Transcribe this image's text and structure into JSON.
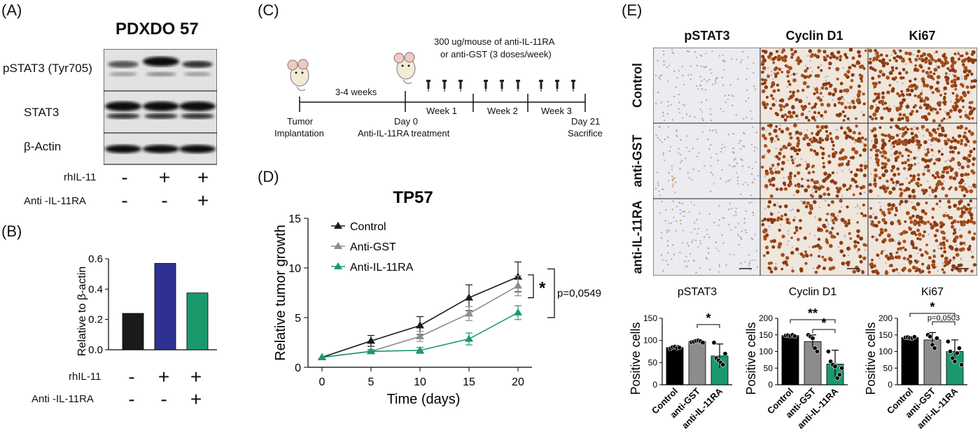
{
  "panels": {
    "a": "(A)",
    "b": "(B)",
    "c": "(C)",
    "d": "(D)",
    "e": "(E)"
  },
  "panel_a": {
    "title": "PDXDO 57",
    "rows": [
      "pSTAT3 (Tyr705)",
      "STAT3",
      "β-Actin"
    ],
    "treat_labels": [
      "rhIL-11",
      "Anti -IL-11RA"
    ],
    "rhil11": [
      "-",
      "+",
      "+"
    ],
    "anti": [
      "-",
      "-",
      "+"
    ]
  },
  "panel_b": {
    "ylabel": "Relative to β-actin",
    "treat_labels": [
      "rhIL-11",
      "Anti -IL-11RA"
    ],
    "rhil11": [
      "-",
      "+",
      "+"
    ],
    "anti": [
      "-",
      "-",
      "+"
    ]
  },
  "panel_c": {
    "dose_text_1": "300 ug/mouse of anti-IL-11RA",
    "dose_text_2": "or anti-GST (3 doses/week)",
    "interval": "3-4 weeks",
    "weeks": [
      "Week 1",
      "Week 2",
      "Week 3"
    ],
    "start_1": "Tumor",
    "start_2": "Implantation",
    "day0_1": "Day 0",
    "day0_2": "Anti-IL-11RA treatment",
    "end_1": "Day 21",
    "end_2": "Sacrifice"
  },
  "panel_e": {
    "columns": [
      "pSTAT3",
      "Cyclin D1",
      "Ki67"
    ],
    "rows": [
      "Control",
      "anti-GST",
      "anti-IL-11RA"
    ]
  },
  "chart_data": [
    {
      "id": "B",
      "type": "bar",
      "ylabel": "Relative to β-actin",
      "categories": [
        "",
        "",
        ""
      ],
      "values": [
        0.24,
        0.57,
        0.375
      ],
      "colors": [
        "#1a1a1a",
        "#2e3192",
        "#1a9a6c"
      ],
      "ylim": [
        0,
        0.6
      ],
      "yticks": [
        "0.0",
        "0.2",
        "0.4",
        "0.6"
      ]
    },
    {
      "id": "D",
      "type": "line",
      "title": "TP57",
      "xlabel": "Time (days)",
      "ylabel": "Relative tumor growth",
      "x": [
        0,
        5,
        10,
        15,
        20
      ],
      "xlim": [
        0,
        20
      ],
      "ylim": [
        0,
        15
      ],
      "xticks": [
        "0",
        "5",
        "10",
        "15",
        "20"
      ],
      "yticks": [
        "0",
        "5",
        "10",
        "15"
      ],
      "legend_position": "top-left",
      "series": [
        {
          "name": "Control",
          "color": "#1a1a1a",
          "values": [
            1,
            2.65,
            4.2,
            7.0,
            9.1
          ],
          "err": [
            0,
            0.55,
            0.9,
            1.3,
            1.5
          ]
        },
        {
          "name": "Anti-GST",
          "color": "#8c8c8c",
          "values": [
            1,
            1.6,
            3.1,
            5.4,
            8.2
          ],
          "err": [
            0,
            0.2,
            0.5,
            0.7,
            1.0
          ]
        },
        {
          "name": "Anti-IL-11RA",
          "color": "#1a9a6c",
          "values": [
            1,
            1.6,
            1.7,
            2.85,
            5.5
          ],
          "err": [
            0,
            0.1,
            0.3,
            0.6,
            0.7
          ]
        }
      ],
      "annotations": [
        "*",
        "p=0,0549"
      ]
    },
    {
      "id": "E1",
      "type": "bar",
      "title": "pSTAT3",
      "ylabel": "Positive cells",
      "categories": [
        "Control",
        "anti-GST",
        "anti-IL-11RA"
      ],
      "values": [
        84,
        98,
        65
      ],
      "err": [
        5,
        4,
        27
      ],
      "colors": [
        "#000000",
        "#8c8c8c",
        "#1a9a6c"
      ],
      "ylim": [
        0,
        150
      ],
      "yticks": [
        "0",
        "50",
        "100",
        "150"
      ],
      "points": [
        [
          82,
          85,
          86,
          83,
          84
        ],
        [
          96,
          97,
          99,
          100,
          98,
          95
        ],
        [
          95,
          60,
          55,
          50,
          45,
          70
        ]
      ],
      "annotations": [
        "*"
      ]
    },
    {
      "id": "E2",
      "type": "bar",
      "title": "Cyclin D1",
      "ylabel": "Positive cells",
      "categories": [
        "Control",
        "anti-GST",
        "anti-IL-11RA"
      ],
      "values": [
        148,
        130,
        62
      ],
      "err": [
        3,
        20,
        42
      ],
      "colors": [
        "#000000",
        "#8c8c8c",
        "#1a9a6c"
      ],
      "ylim": [
        0,
        200
      ],
      "yticks": [
        "0",
        "50",
        "100",
        "150",
        "200"
      ],
      "points": [
        [
          148,
          149,
          147,
          150,
          146
        ],
        [
          150,
          145,
          140,
          110,
          100
        ],
        [
          100,
          70,
          60,
          55,
          20,
          30,
          50
        ]
      ],
      "annotations": [
        "**",
        "*"
      ]
    },
    {
      "id": "E3",
      "type": "bar",
      "title": "Ki67",
      "ylabel": "Positive cells",
      "categories": [
        "Control",
        "anti-GST",
        "anti-IL-11RA"
      ],
      "values": [
        142,
        135,
        100
      ],
      "err": [
        4,
        22,
        35
      ],
      "colors": [
        "#000000",
        "#8c8c8c",
        "#1a9a6c"
      ],
      "ylim": [
        0,
        200
      ],
      "yticks": [
        "0",
        "50",
        "100",
        "150",
        "200"
      ],
      "points": [
        [
          142,
          143,
          141,
          140,
          144
        ],
        [
          150,
          145,
          120,
          110,
          140
        ],
        [
          130,
          100,
          80,
          70,
          95,
          110,
          60
        ]
      ],
      "annotations": [
        "*",
        "p=0,0503"
      ]
    }
  ]
}
